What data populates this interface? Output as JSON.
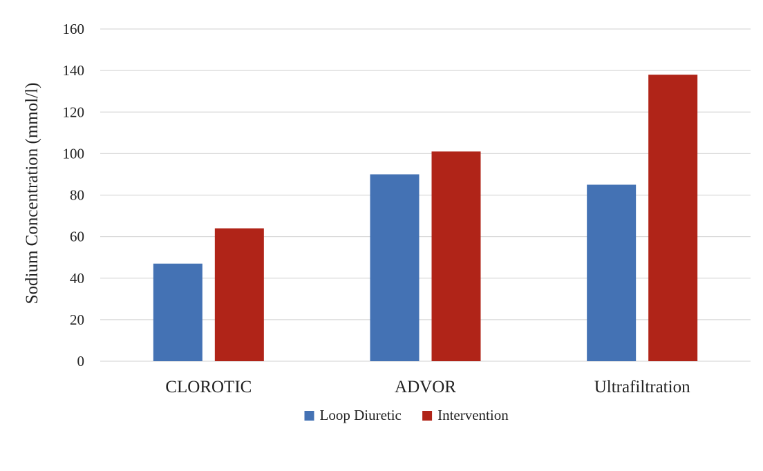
{
  "chart_data": {
    "type": "bar",
    "title": "",
    "xlabel": "",
    "ylabel": "Sodium Concentration (mmol/l)",
    "categories": [
      "CLOROTIC",
      "ADVOR",
      "Ultrafiltration"
    ],
    "series": [
      {
        "name": "Loop Diuretic",
        "color": "#4472b4",
        "values": [
          47,
          90,
          85
        ]
      },
      {
        "name": "Intervention",
        "color": "#b02418",
        "values": [
          64,
          101,
          138
        ]
      }
    ],
    "ylim": [
      0,
      160
    ],
    "yticks": [
      0,
      20,
      40,
      60,
      80,
      100,
      120,
      140,
      160
    ],
    "grid": true,
    "legend_position": "bottom",
    "gridline_color": "#d9d9d9"
  }
}
